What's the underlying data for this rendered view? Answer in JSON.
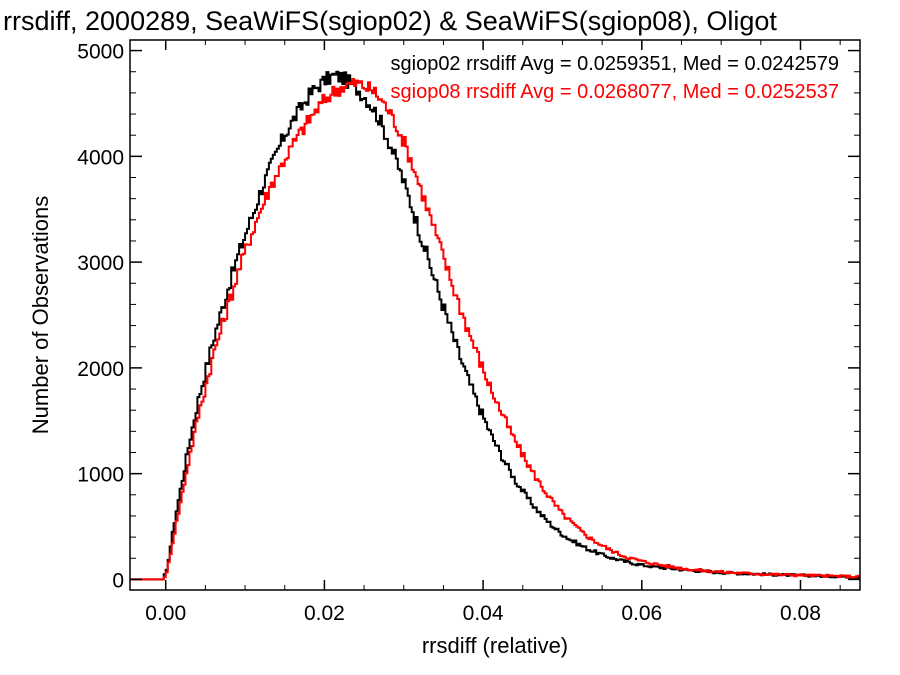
{
  "chart_data": {
    "type": "line",
    "title": "rrsdiff, 2000289, SeaWiFS(sgiop02) & SeaWiFS(sgiop08), Oligot",
    "xlabel": "rrsdiff (relative)",
    "ylabel": "Number of Observations",
    "xlim": [
      -0.0045,
      0.0875
    ],
    "ylim": [
      -100,
      5100
    ],
    "x_ticks": [
      0.0,
      0.02,
      0.04,
      0.06,
      0.08
    ],
    "x_tick_labels": [
      "0.00",
      "0.02",
      "0.04",
      "0.06",
      "0.08"
    ],
    "y_ticks": [
      0,
      1000,
      2000,
      3000,
      4000,
      5000
    ],
    "y_tick_labels": [
      "0",
      "1000",
      "2000",
      "3000",
      "4000",
      "5000"
    ],
    "grid": false,
    "legend_position": "top-right",
    "series": [
      {
        "name": "sgiop02",
        "color": "#000000",
        "annotation": "sgiop02 rrsdiff Avg = 0.0259351, Med = 0.0242579",
        "x": [
          -0.0045,
          -0.0005,
          0.0,
          0.001,
          0.002,
          0.003,
          0.004,
          0.005,
          0.006,
          0.007,
          0.008,
          0.009,
          0.01,
          0.011,
          0.012,
          0.013,
          0.014,
          0.015,
          0.016,
          0.017,
          0.018,
          0.019,
          0.02,
          0.021,
          0.022,
          0.023,
          0.024,
          0.025,
          0.026,
          0.027,
          0.028,
          0.029,
          0.03,
          0.031,
          0.032,
          0.033,
          0.034,
          0.035,
          0.036,
          0.037,
          0.038,
          0.039,
          0.04,
          0.041,
          0.042,
          0.043,
          0.044,
          0.045,
          0.046,
          0.047,
          0.048,
          0.049,
          0.05,
          0.051,
          0.052,
          0.053,
          0.054,
          0.055,
          0.056,
          0.057,
          0.058,
          0.059,
          0.06,
          0.062,
          0.064,
          0.066,
          0.068,
          0.07,
          0.072,
          0.074,
          0.076,
          0.078,
          0.08,
          0.082,
          0.084,
          0.086,
          0.0875
        ],
        "y": [
          0,
          0,
          80,
          550,
          950,
          1350,
          1700,
          2000,
          2300,
          2560,
          2820,
          3060,
          3280,
          3480,
          3700,
          3880,
          4060,
          4220,
          4350,
          4470,
          4580,
          4660,
          4720,
          4760,
          4750,
          4700,
          4640,
          4560,
          4460,
          4320,
          4140,
          3950,
          3730,
          3500,
          3260,
          3020,
          2780,
          2550,
          2320,
          2100,
          1890,
          1700,
          1520,
          1350,
          1200,
          1060,
          930,
          820,
          720,
          630,
          550,
          480,
          420,
          370,
          330,
          290,
          260,
          230,
          205,
          185,
          165,
          150,
          135,
          115,
          100,
          85,
          75,
          65,
          58,
          52,
          46,
          42,
          38,
          34,
          30,
          26,
          24
        ]
      },
      {
        "name": "sgiop08",
        "color": "#ff0000",
        "annotation": "sgiop08 rrsdiff Avg = 0.0268077, Med = 0.0252537",
        "x": [
          -0.0045,
          -0.0005,
          0.0,
          0.001,
          0.002,
          0.003,
          0.004,
          0.005,
          0.006,
          0.007,
          0.008,
          0.009,
          0.01,
          0.011,
          0.012,
          0.013,
          0.014,
          0.015,
          0.016,
          0.017,
          0.018,
          0.019,
          0.02,
          0.021,
          0.022,
          0.023,
          0.024,
          0.025,
          0.026,
          0.027,
          0.028,
          0.029,
          0.03,
          0.031,
          0.032,
          0.033,
          0.034,
          0.035,
          0.036,
          0.037,
          0.038,
          0.039,
          0.04,
          0.041,
          0.042,
          0.043,
          0.044,
          0.045,
          0.046,
          0.047,
          0.048,
          0.049,
          0.05,
          0.051,
          0.052,
          0.053,
          0.054,
          0.055,
          0.056,
          0.057,
          0.058,
          0.059,
          0.06,
          0.062,
          0.064,
          0.066,
          0.068,
          0.07,
          0.072,
          0.074,
          0.076,
          0.078,
          0.08,
          0.082,
          0.084,
          0.086,
          0.0875
        ],
        "y": [
          0,
          0,
          60,
          450,
          820,
          1200,
          1550,
          1850,
          2150,
          2400,
          2650,
          2900,
          3120,
          3330,
          3520,
          3700,
          3850,
          3990,
          4120,
          4240,
          4350,
          4450,
          4540,
          4610,
          4650,
          4680,
          4690,
          4660,
          4620,
          4540,
          4430,
          4290,
          4120,
          3920,
          3700,
          3480,
          3250,
          3020,
          2790,
          2570,
          2360,
          2160,
          1960,
          1780,
          1610,
          1450,
          1300,
          1160,
          1030,
          910,
          800,
          700,
          610,
          540,
          470,
          410,
          360,
          315,
          275,
          240,
          210,
          190,
          170,
          140,
          115,
          95,
          82,
          70,
          62,
          55,
          48,
          44,
          40,
          36,
          32,
          28,
          26
        ]
      }
    ]
  }
}
